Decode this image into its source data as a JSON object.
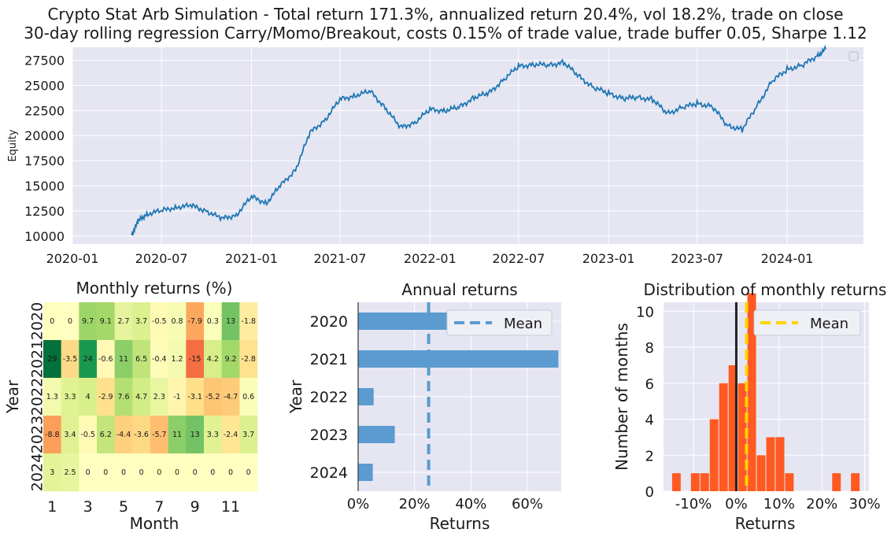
{
  "title_line1": "Crypto Stat Arb Simulation - Total return 171.3%, annualized return 20.4%, vol 18.2%, trade on close",
  "title_line2": "30-day rolling regression Carry/Momo/Breakout, costs 0.15% of trade value, trade buffer 0.05, Sharpe 1.12",
  "colors": {
    "panel_bg": "#e5e6f2",
    "grid": "#ffffff",
    "equity_line": "#1f77b4",
    "bar": "#5b9bd0",
    "mean_line": "#5b9bd0",
    "hist": "#ff5a22",
    "hist_mean": "#ffd400",
    "zero_line": "#222222"
  },
  "chart_data": [
    {
      "id": "equity",
      "type": "line",
      "ylabel": "Equity",
      "xlabel": "",
      "ylim": [
        9200,
        28800
      ],
      "yticks": [
        10000,
        12500,
        15000,
        17500,
        20000,
        22500,
        25000,
        27500
      ],
      "xlim": [
        "2020-01-01",
        "2024-06-05"
      ],
      "xticks": [
        "2020-01",
        "2020-07",
        "2021-01",
        "2021-07",
        "2022-01",
        "2022-07",
        "2023-01",
        "2023-07",
        "2024-01"
      ],
      "legend": "top-right (empty)",
      "grid": true,
      "series": [
        {
          "x": [
            "2020-05-01",
            "2020-05-15",
            "2020-06-01",
            "2020-07-01",
            "2020-08-01",
            "2020-09-01",
            "2020-10-01",
            "2020-11-01",
            "2020-12-01",
            "2021-01-01",
            "2021-02-01",
            "2021-03-01",
            "2021-04-01",
            "2021-05-01",
            "2021-06-01",
            "2021-07-01",
            "2021-08-01",
            "2021-09-01",
            "2021-10-01",
            "2021-11-01",
            "2021-12-01",
            "2022-01-01",
            "2022-02-01",
            "2022-03-01",
            "2022-04-01",
            "2022-05-01",
            "2022-06-01",
            "2022-07-01",
            "2022-08-01",
            "2022-09-01",
            "2022-10-01",
            "2022-11-01",
            "2022-12-01",
            "2023-01-01",
            "2023-02-01",
            "2023-03-01",
            "2023-04-01",
            "2023-05-01",
            "2023-06-01",
            "2023-07-01",
            "2023-08-01",
            "2023-09-01",
            "2023-10-01",
            "2023-11-01",
            "2023-12-01",
            "2024-01-01",
            "2024-02-01",
            "2024-03-01",
            "2024-03-20"
          ],
          "y": [
            10100,
            11500,
            12200,
            12500,
            12900,
            13000,
            12500,
            11700,
            12100,
            13900,
            13300,
            15000,
            16600,
            20300,
            21600,
            23600,
            24000,
            24400,
            22800,
            20800,
            21300,
            22600,
            22500,
            22800,
            23800,
            24200,
            25600,
            26900,
            27100,
            27000,
            27300,
            25900,
            24800,
            24200,
            23700,
            23800,
            23600,
            22200,
            22800,
            23200,
            22900,
            21000,
            20600,
            23000,
            25400,
            26600,
            27000,
            27900,
            28600
          ]
        }
      ]
    },
    {
      "id": "monthly",
      "type": "heatmap",
      "title": "Monthly returns (%)",
      "xlabel": "Month",
      "ylabel": "Year",
      "xticks": [
        "1",
        "3",
        "5",
        "7",
        "9",
        "11"
      ],
      "rows": [
        "2020",
        "2021",
        "2022",
        "2023",
        "2024"
      ],
      "columns": [
        1,
        2,
        3,
        4,
        5,
        6,
        7,
        8,
        9,
        10,
        11,
        12
      ],
      "values": [
        [
          0,
          0,
          9.7,
          9.1,
          2.7,
          3.7,
          -0.5,
          0.8,
          -7.9,
          0.3,
          13,
          -1.8
        ],
        [
          29,
          -3.5,
          24,
          -0.6,
          11,
          6.5,
          -0.4,
          1.2,
          -15,
          4.2,
          9.2,
          -2.8
        ],
        [
          1.3,
          3.3,
          4,
          -2.9,
          7.6,
          4.7,
          2.3,
          -1,
          -3.1,
          -5.2,
          -4.7,
          0.6
        ],
        [
          -8.8,
          3.4,
          -0.5,
          6.2,
          -4.4,
          -3.6,
          -5.7,
          11,
          13,
          3.3,
          -2.4,
          3.7
        ],
        [
          3,
          2.5,
          0,
          0,
          0,
          0,
          0,
          0,
          0,
          0,
          0,
          0
        ]
      ],
      "colormap": "RdYlGn"
    },
    {
      "id": "annual",
      "type": "bar",
      "title": "Annual returns",
      "xlabel": "Returns",
      "ylabel": "Year",
      "categories": [
        "2020",
        "2021",
        "2022",
        "2023",
        "2024"
      ],
      "values": [
        0.32,
        0.71,
        0.055,
        0.13,
        0.052
      ],
      "mean": 0.25,
      "xlim": [
        0,
        0.72
      ],
      "xticks": [
        "0%",
        "20%",
        "40%",
        "60%"
      ],
      "legend": [
        "Mean"
      ],
      "grid": true
    },
    {
      "id": "distribution",
      "type": "bar",
      "title": "Distribution of monthly returns",
      "xlabel": "Returns",
      "ylabel": "Number of months",
      "xlim": [
        -0.17,
        0.31
      ],
      "ylim": [
        0,
        10.5
      ],
      "yticks": [
        "0",
        "2",
        "4",
        "6",
        "8",
        "10"
      ],
      "xticks": [
        "-10%",
        "0%",
        "10%",
        "20%",
        "30%"
      ],
      "bin_width": 0.022,
      "bins": [
        {
          "x0": -0.15,
          "count": 1
        },
        {
          "x0": -0.106,
          "count": 1
        },
        {
          "x0": -0.084,
          "count": 1
        },
        {
          "x0": -0.062,
          "count": 4
        },
        {
          "x0": -0.04,
          "count": 6
        },
        {
          "x0": -0.018,
          "count": 7
        },
        {
          "x0": 0.004,
          "count": 6
        },
        {
          "x0": 0.026,
          "count": 11
        },
        {
          "x0": 0.048,
          "count": 2
        },
        {
          "x0": 0.07,
          "count": 3
        },
        {
          "x0": 0.092,
          "count": 3
        },
        {
          "x0": 0.114,
          "count": 1
        },
        {
          "x0": 0.092,
          "count": 3
        },
        {
          "x0": 0.136,
          "count": 0
        },
        {
          "x0": 0.224,
          "count": 1
        },
        {
          "x0": 0.268,
          "count": 1
        }
      ],
      "zero_line": 0,
      "mean": 0.024,
      "legend": [
        "Mean"
      ],
      "grid": true
    }
  ]
}
